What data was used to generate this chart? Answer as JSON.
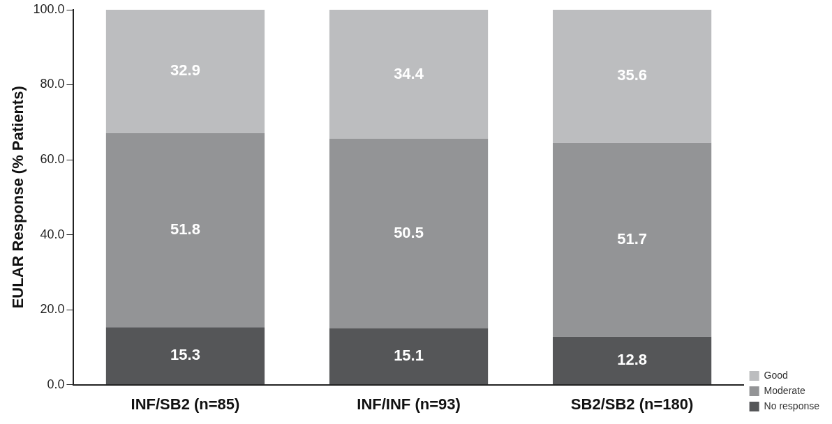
{
  "chart_data": {
    "type": "bar",
    "stacked": true,
    "ylabel": "EULAR Response (% Patients)",
    "categories": [
      "INF/SB2 (n=85)",
      "INF/INF (n=93)",
      "SB2/SB2 (n=180)"
    ],
    "series": [
      {
        "name": "No response",
        "color": "#555658",
        "values": [
          15.3,
          15.1,
          12.8
        ]
      },
      {
        "name": "Moderate",
        "color": "#939496",
        "values": [
          51.8,
          50.5,
          51.7
        ]
      },
      {
        "name": "Good",
        "color": "#bcbdbf",
        "values": [
          32.9,
          34.4,
          35.6
        ]
      }
    ],
    "ylim": [
      0,
      100
    ],
    "yticks": [
      {
        "value": 0,
        "label": "0.0"
      },
      {
        "value": 20,
        "label": "20.0"
      },
      {
        "value": 40,
        "label": "40.0"
      },
      {
        "value": 60,
        "label": "60.0"
      },
      {
        "value": 80,
        "label": "80.0"
      },
      {
        "value": 100,
        "label": "100.0"
      }
    ],
    "data_labels": true,
    "grid": false,
    "legend": "bottom right"
  }
}
